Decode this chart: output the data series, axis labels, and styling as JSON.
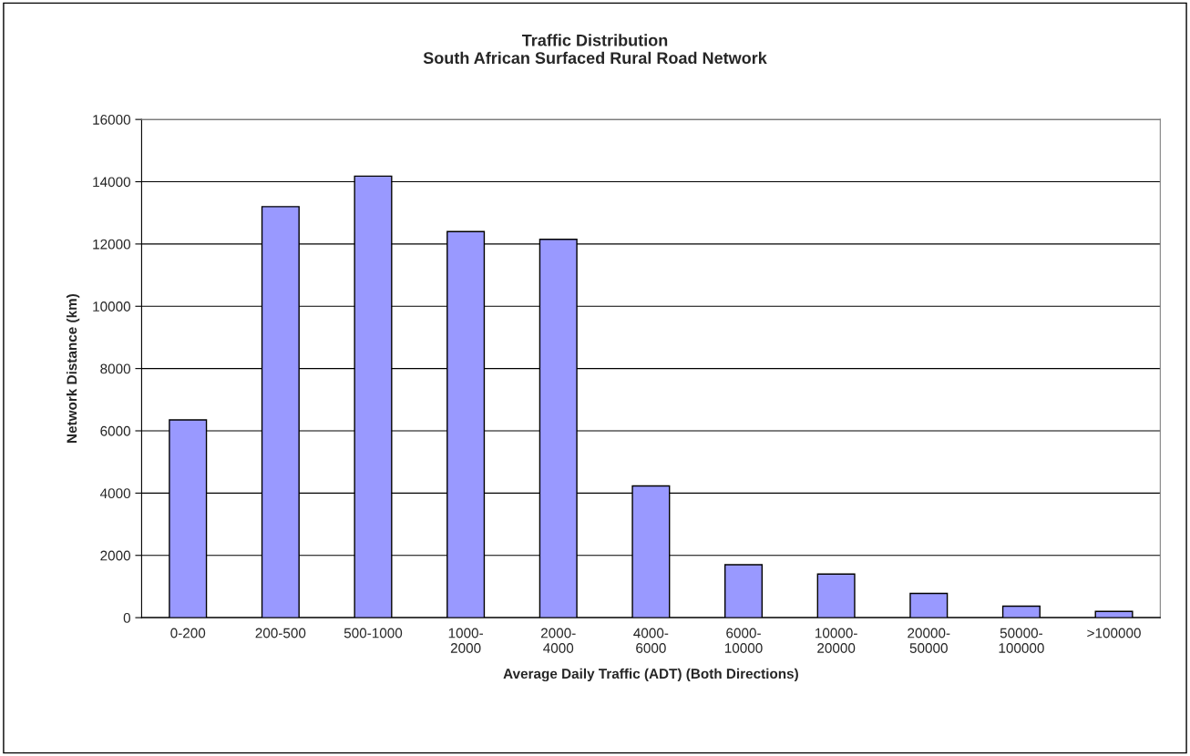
{
  "chart_data": {
    "type": "bar",
    "title": "Traffic Distribution\nSouth African Surfaced Rural Road Network",
    "xlabel": "Average Daily Traffic (ADT) (Both Directions)",
    "ylabel": "Network Distance (km)",
    "categories": [
      "0-200",
      "200-500",
      "500-1000",
      "1000-\n2000",
      "2000-\n4000",
      "4000-\n6000",
      "6000-\n10000",
      "10000-\n20000",
      "20000-\n50000",
      "50000-\n100000",
      ">100000"
    ],
    "values": [
      6350,
      13200,
      14180,
      12400,
      12150,
      4230,
      1700,
      1400,
      780,
      370,
      200
    ],
    "color": "#9999ff",
    "ylim": [
      0,
      16000
    ],
    "yticks": [
      0,
      2000,
      4000,
      6000,
      8000,
      10000,
      12000,
      14000,
      16000
    ],
    "grid": "y",
    "legend": false
  }
}
